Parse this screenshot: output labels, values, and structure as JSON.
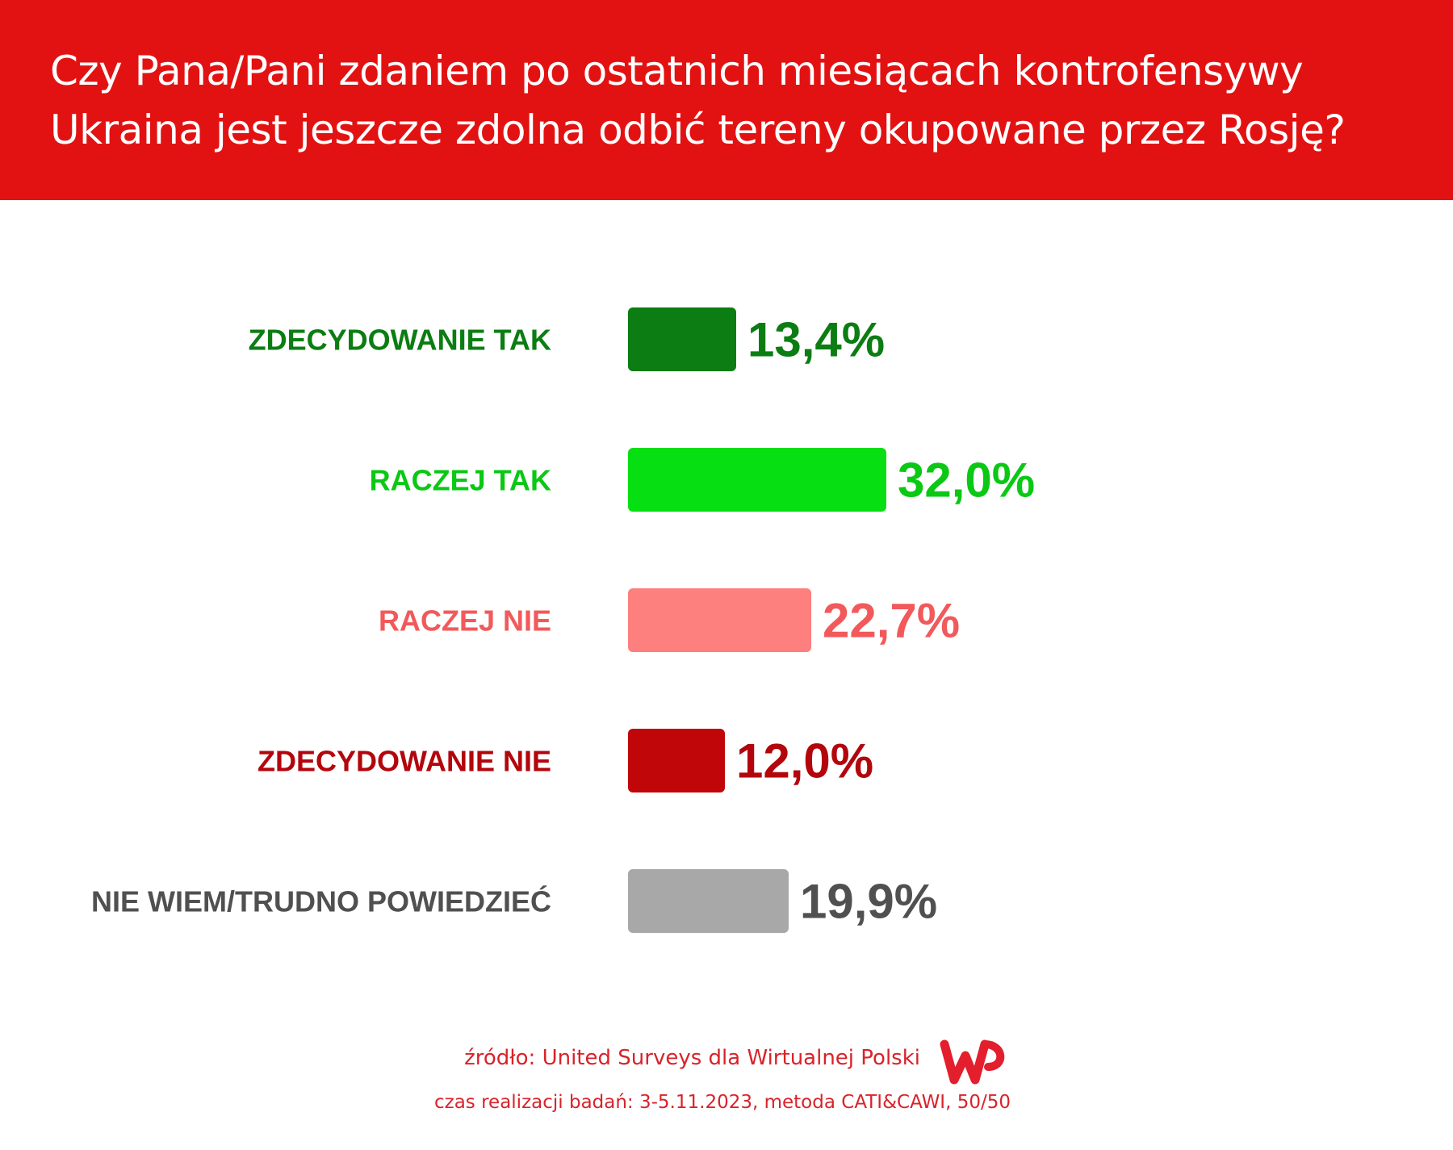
{
  "header": {
    "title_line1": "Czy Pana/Pani zdaniem po ostatnich miesiącach kontrofensywy",
    "title_line2": "Ukraina jest jeszcze zdolna odbić tereny okupowane przez Rosję?",
    "background_color": "#e31212"
  },
  "chart_data": {
    "type": "bar",
    "orientation": "horizontal",
    "title": "Czy Pana/Pani zdaniem po ostatnich miesiącach kontrofensywy Ukraina jest jeszcze zdolna odbić tereny okupowane przez Rosję?",
    "categories": [
      "ZDECYDOWANIE TAK",
      "RACZEJ TAK",
      "RACZEJ NIE",
      "ZDECYDOWANIE NIE",
      "NIE WIEM/TRUDNO POWIEDZIEĆ"
    ],
    "values": [
      13.4,
      32.0,
      22.7,
      12.0,
      19.9
    ],
    "value_labels": [
      "13,4%",
      "32,0%",
      "22,7%",
      "12,0%",
      "19,9%"
    ],
    "bar_colors": [
      "#0b7d12",
      "#06e012",
      "#fd7f7e",
      "#c00609",
      "#a8a8a8"
    ],
    "label_colors": [
      "#0b7d12",
      "#0ac814",
      "#f2595b",
      "#b3060c",
      "#505050"
    ],
    "unit": "%",
    "grid": false,
    "legend": "none"
  },
  "footer": {
    "source": "źródło: United Surveys dla Wirtualnej Polski",
    "meta": "czas realizacji badań: 3-5.11.2023, metoda CATI&CAWI, 50/50",
    "logo_text": "WP",
    "logo_color": "#e31e2d"
  }
}
